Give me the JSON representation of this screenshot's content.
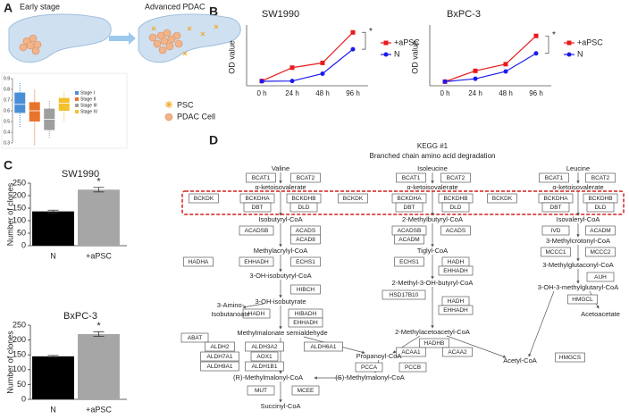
{
  "panels": {
    "labels": [
      "A",
      "B",
      "C",
      "D"
    ]
  },
  "illustration": {
    "early_label": "Early stage",
    "advanced_label": "Advanced PDAC",
    "legend": [
      "PSC",
      "PDAC Cell"
    ]
  },
  "chart_data": [
    {
      "type": "box",
      "ylim": [
        0.3,
        0.9
      ],
      "yticks": [
        0.3,
        0.4,
        0.5,
        0.6,
        0.7,
        0.8,
        0.9
      ],
      "series": [
        {
          "name": "Stage I",
          "color": "#4a8fd6",
          "values": [
            0.45,
            0.58,
            0.66,
            0.77,
            0.86
          ]
        },
        {
          "name": "Stage II",
          "color": "#e8742c",
          "values": [
            0.28,
            0.5,
            0.6,
            0.68,
            0.8
          ]
        },
        {
          "name": "Stage III",
          "color": "#9e9e9e",
          "values": [
            0.35,
            0.42,
            0.52,
            0.62,
            0.7
          ]
        },
        {
          "name": "Stage IV",
          "color": "#f2c12e",
          "values": [
            0.5,
            0.6,
            0.67,
            0.72,
            0.78
          ]
        }
      ]
    },
    {
      "type": "line",
      "title": "SW1990",
      "y_label": "OD value",
      "categories": [
        "0 h",
        "24 h",
        "48 h",
        "96 h"
      ],
      "ylim": [
        0.3,
        2.1
      ],
      "annotation": "*",
      "series": [
        {
          "name": "+aPSC",
          "color": "#e8191d",
          "values": [
            0.45,
            0.87,
            1.02,
            1.98
          ]
        },
        {
          "name": "N",
          "color": "#1a1aee",
          "values": [
            0.44,
            0.45,
            0.68,
            1.45
          ]
        }
      ]
    },
    {
      "type": "line",
      "title": "BxPC-3",
      "y_label": "OD value",
      "categories": [
        "0 h",
        "24 h",
        "48 h",
        "96 h"
      ],
      "ylim": [
        0.3,
        2.1
      ],
      "annotation": "*",
      "series": [
        {
          "name": "+aPSC",
          "color": "#e8191d",
          "values": [
            0.43,
            0.77,
            0.98,
            1.87
          ]
        },
        {
          "name": "N",
          "color": "#1a1aee",
          "values": [
            0.43,
            0.52,
            0.75,
            1.32
          ]
        }
      ]
    },
    {
      "type": "bar",
      "title": "SW1990",
      "y_label": "Number of clones",
      "categories": [
        "N",
        "+aPSC"
      ],
      "values": [
        137,
        224
      ],
      "errors": [
        5,
        9
      ],
      "colors": [
        "#000000",
        "#a6a6a6"
      ],
      "ylim": [
        0,
        250
      ],
      "yticks": [
        0,
        50,
        100,
        150,
        200,
        250
      ],
      "annotation": "*"
    },
    {
      "type": "bar",
      "title": "BxPC-3",
      "y_label": "Number of clones",
      "categories": [
        "N",
        "+aPSC"
      ],
      "values": [
        145,
        220
      ],
      "errors": [
        3,
        8
      ],
      "colors": [
        "#000000",
        "#a6a6a6"
      ],
      "ylim": [
        0,
        250
      ],
      "yticks": [
        0,
        50,
        100,
        150,
        200,
        250
      ],
      "annotation": "*"
    }
  ],
  "pathway": {
    "title": "KEGG #1",
    "subtitle": "Branched chain amino acid degradation",
    "enzymes": [
      "BCAT1",
      "BCAT2",
      "BCKDK",
      "BCKDHA",
      "BCKDHB",
      "DBT",
      "DLD",
      "ACADSB",
      "ACADS",
      "ACAD8",
      "HADHA",
      "EHHADH",
      "ECHS1",
      "HIBCH",
      "HADH",
      "HIBADH",
      "EHHADH",
      "ABAT",
      "ALDH2",
      "ALDH7A1",
      "ALDH9A1",
      "ALDH3A2",
      "AOX1",
      "ALDH1B1",
      "ALDH6A1",
      "MUT",
      "MCEE",
      "PCCA",
      "PCCB",
      "BCAT1",
      "BCAT2",
      "BCKDK",
      "BCKDHA",
      "BCKDHB",
      "DBT",
      "DLD",
      "ACADSB",
      "ACADS",
      "ACADM",
      "ECHS1",
      "HADH",
      "EHHADH",
      "HSD17B10",
      "HADH",
      "EHHADH",
      "HADHB",
      "ACAA1",
      "ACAA2",
      "BCAT1",
      "BCAT2",
      "BCKDK",
      "BCKDHA",
      "BCKDHB",
      "DBT",
      "DLD",
      "IVD",
      "ACADM",
      "MCCC1",
      "MCCC2",
      "AUH",
      "HMGCL",
      "HMGCS"
    ],
    "compounds": [
      "Valine",
      "Isoleucine",
      "Leucine",
      "α-ketoisovalerate",
      "α-ketoisovalerate",
      "α-ketoisovalerate",
      "Isobutyryl-CoA",
      "2-Methylbutyryl-CoA",
      "Isovaleryl-CoA",
      "Methylacrylyl-CoA",
      "Tiglyl-CoA",
      "3-Methylcrotonyl-CoA",
      "3-OH-isobutyryl-CoA",
      "2-Methyl-3-OH-butyryl-CoA",
      "3-Methylglutaconyl-CoA",
      "3-OH-isobutyrate",
      "3-Amino-",
      "Isobutanoate",
      "3-OH-3-methylglutaryl-CoA",
      "Methylmalonate semialdehyde",
      "2-Methylacetoacetyl-CoA",
      "Acetoacetate",
      "Propanoyl-CoA",
      "(S)-Methylmalonyl-CoA",
      "(R)-Methylmalonyl-CoA",
      "Acetyl-CoA",
      "Succinyl-CoA"
    ]
  }
}
